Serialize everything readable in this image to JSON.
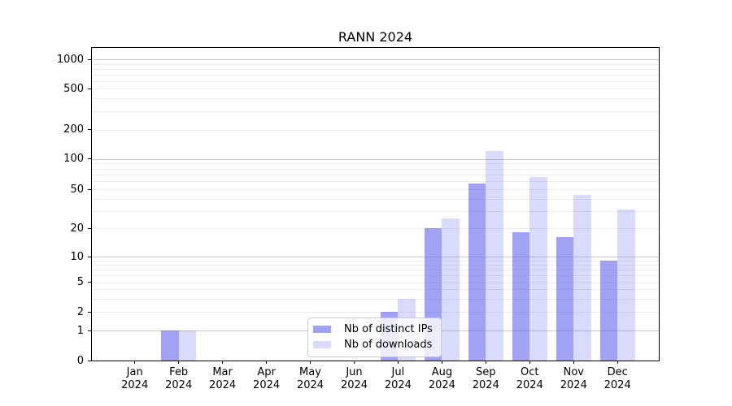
{
  "chart_data": {
    "type": "bar",
    "title": "RANN 2024",
    "categories": [
      "Jan",
      "Feb",
      "Mar",
      "Apr",
      "May",
      "Jun",
      "Jul",
      "Aug",
      "Sep",
      "Oct",
      "Nov",
      "Dec"
    ],
    "x_tick_year": "2024",
    "series": [
      {
        "name": "Nb of distinct IPs",
        "color": "rgba(85,85,235,0.55)",
        "values": [
          0,
          1,
          0,
          0,
          0,
          0,
          2,
          20,
          57,
          18,
          16,
          9
        ]
      },
      {
        "name": "Nb of downloads",
        "color": "rgba(85,85,235,0.22)",
        "values": [
          0,
          1,
          0,
          0,
          0,
          0,
          3,
          25,
          120,
          66,
          44,
          31
        ]
      }
    ],
    "y_ticks": [
      0,
      1,
      2,
      5,
      10,
      20,
      50,
      100,
      200,
      500,
      1000
    ],
    "y_scale": "symlog",
    "ylim": [
      0,
      1300
    ],
    "xlabel": "",
    "ylabel": "",
    "grid": "on",
    "legend_position": "lower-center",
    "colors": {
      "axis": "#000000",
      "grid_major": "#c8c8c8",
      "grid_minor": "#ececec",
      "legend_border": "#cccccc"
    }
  }
}
